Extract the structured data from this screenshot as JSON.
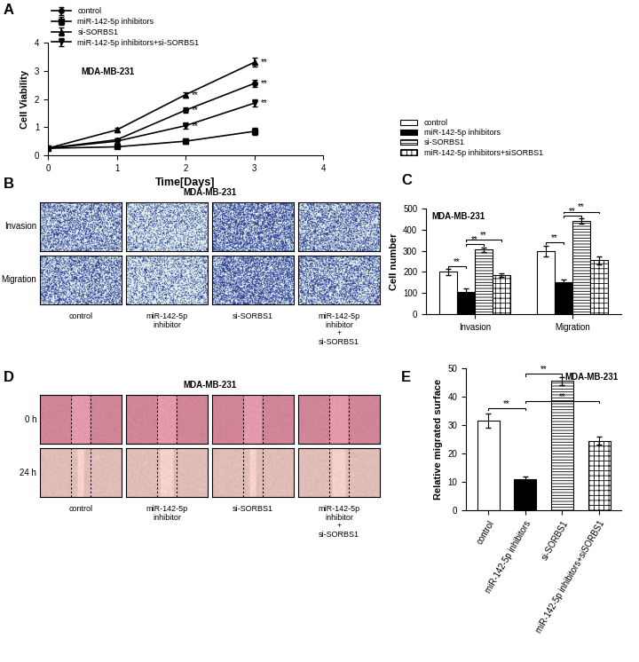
{
  "panel_labels": [
    "A",
    "B",
    "C",
    "D",
    "E"
  ],
  "chart_data": [
    {
      "type": "line",
      "title": "MDA-MB-231",
      "x_label": "Time[Days]",
      "y_label": "Cell Viability",
      "x": [
        0,
        1,
        2,
        3
      ],
      "xlim": [
        0,
        4
      ],
      "xticks": [
        0,
        1,
        2,
        3,
        4
      ],
      "ylim": [
        0,
        4
      ],
      "yticks": [
        0,
        1,
        2,
        3,
        4
      ],
      "legend": "upper left",
      "series": [
        {
          "name": "control",
          "color": "#000000",
          "marker": "circle",
          "values": [
            0.25,
            0.55,
            1.6,
            2.55
          ],
          "errors": [
            0.03,
            0.05,
            0.1,
            0.12
          ]
        },
        {
          "name": "miR-142-5p inhibitors",
          "color": "#000000",
          "marker": "square",
          "values": [
            0.25,
            0.3,
            0.5,
            0.85
          ],
          "errors": [
            0.03,
            0.04,
            0.1,
            0.12
          ]
        },
        {
          "name": "si-SORBS1",
          "color": "#000000",
          "marker": "triangle_up",
          "values": [
            0.25,
            0.9,
            2.15,
            3.3
          ],
          "errors": [
            0.03,
            0.08,
            0.1,
            0.15
          ]
        },
        {
          "name": "miR-142-5p inhibitors+si-SORBS1",
          "color": "#000000",
          "marker": "triangle_down",
          "values": [
            0.25,
            0.5,
            1.05,
            1.85
          ],
          "errors": [
            0.03,
            0.05,
            0.12,
            0.12
          ]
        }
      ],
      "annotations": [
        {
          "text": "**",
          "x": 2,
          "y": 2.15
        },
        {
          "text": "**",
          "x": 2,
          "y": 1.6
        },
        {
          "text": "**",
          "x": 2,
          "y": 1.05
        },
        {
          "text": "**",
          "x": 3,
          "y": 3.3
        },
        {
          "text": "**",
          "x": 3,
          "y": 2.55
        },
        {
          "text": "**",
          "x": 3,
          "y": 1.85
        }
      ]
    },
    {
      "type": "bar",
      "title": "MDA-MB-231",
      "y_label": "Cell number",
      "categories": [
        "Invasion",
        "Migration"
      ],
      "ylim": [
        0,
        500
      ],
      "yticks": [
        0,
        100,
        200,
        300,
        400,
        500
      ],
      "legend": "upper left",
      "series": [
        {
          "name": "control",
          "color": "#ffffff",
          "values": [
            200,
            300
          ],
          "errors": [
            15,
            25
          ]
        },
        {
          "name": "miR-142-5p inhibitors",
          "color": "#000000",
          "values": [
            105,
            150
          ],
          "errors": [
            15,
            15
          ]
        },
        {
          "name": "si-SORBS1",
          "color": "#ffffff",
          "values": [
            305,
            440
          ],
          "errors": [
            12,
            12
          ]
        },
        {
          "name": "miR-142-5p inhibitors+siSORBS1",
          "color": "#ffffff",
          "values": [
            185,
            255
          ],
          "errors": [
            10,
            20
          ]
        }
      ],
      "significance": [
        {
          "category": 0,
          "from": 0,
          "to": 1,
          "y": 225,
          "text": "**"
        },
        {
          "category": 0,
          "from": 1,
          "to": 2,
          "y": 330,
          "text": "**"
        },
        {
          "category": 0,
          "from": 1,
          "to": 3,
          "y": 352,
          "text": "**"
        },
        {
          "category": 1,
          "from": 0,
          "to": 1,
          "y": 340,
          "text": "**"
        },
        {
          "category": 1,
          "from": 1,
          "to": 2,
          "y": 465,
          "text": "**"
        },
        {
          "category": 1,
          "from": 1,
          "to": 3,
          "y": 485,
          "text": "**"
        }
      ]
    },
    {
      "type": "bar",
      "title": "MDA-MB-231",
      "y_label": "Relative migrated surface",
      "categories": [
        "control",
        "miR-142-5p inhibitors",
        "si-SORBS1",
        "miR-142-5p inhibitors+siSORBS1"
      ],
      "values": [
        31.5,
        11,
        45.5,
        24.5
      ],
      "errors": [
        2.5,
        1,
        1.5,
        1.5
      ],
      "colors": [
        "#ffffff",
        "#000000",
        "#ffffff",
        "#ffffff"
      ],
      "ylim": [
        0,
        50
      ],
      "yticks": [
        0,
        10,
        20,
        30,
        40,
        50
      ],
      "significance": [
        {
          "from": 0,
          "to": 1,
          "y": 36,
          "text": "**"
        },
        {
          "from": 1,
          "to": 2,
          "y": 48,
          "text": "**"
        },
        {
          "from": 1,
          "to": 3,
          "y": 38.5,
          "text": "**"
        }
      ]
    }
  ],
  "image_panels": [
    {
      "title": "MDA-MB-231",
      "rows": [
        "Invasion",
        "Migration"
      ],
      "columns": [
        "control",
        "miR-142-5p\ninhibitor",
        "si-SORBS1",
        "miR-142-5p\ninhibitor\n+\nsi-SORBS1"
      ]
    },
    {
      "title": "MDA-MB-231",
      "rows": [
        "0 h",
        "24 h"
      ],
      "columns": [
        "control",
        "miR-142-5p\ninhibitor",
        "si-SORBS1",
        "miR-142-5p\ninhibitor\n+\nsi-SORBS1"
      ]
    }
  ]
}
